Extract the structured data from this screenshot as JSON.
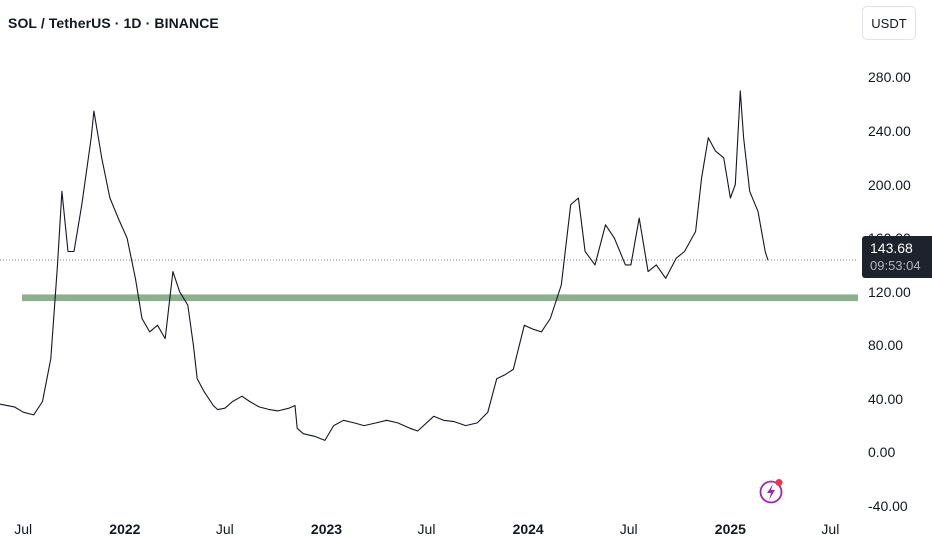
{
  "header": {
    "title": "SOL / TetherUS · 1D · BINANCE",
    "currency_label": "USDT"
  },
  "price_badge": {
    "price": "143.68",
    "countdown": "09:53:04"
  },
  "colors": {
    "line": "#131722",
    "support_band": "#8db08f",
    "badge_bg": "#1e222d",
    "accent": "#9c27b0",
    "notification": "#f23645"
  },
  "icons": {
    "bottom_right": "lightning-bolt-icon"
  },
  "chart_data": {
    "type": "line",
    "title": "SOL / TetherUS · 1D · BINANCE",
    "ylim": [
      -46,
      305
    ],
    "y_ticks": [
      "280.00",
      "240.00",
      "200.00",
      "160.00",
      "120.00",
      "80.00",
      "40.00",
      "0.00",
      "-40.00"
    ],
    "x_ticks": [
      {
        "label": "Jul",
        "date": "2021-07-01",
        "bold": false
      },
      {
        "label": "2022",
        "date": "2022-01-01",
        "bold": true
      },
      {
        "label": "Jul",
        "date": "2022-07-01",
        "bold": false
      },
      {
        "label": "2023",
        "date": "2023-01-01",
        "bold": true
      },
      {
        "label": "Jul",
        "date": "2023-07-01",
        "bold": false
      },
      {
        "label": "2024",
        "date": "2024-01-01",
        "bold": true
      },
      {
        "label": "Jul",
        "date": "2024-07-01",
        "bold": false
      },
      {
        "label": "2025",
        "date": "2025-01-01",
        "bold": true
      },
      {
        "label": "Jul",
        "date": "2025-07-01",
        "bold": false
      }
    ],
    "x_range": [
      "2021-05-20",
      "2025-08-20"
    ],
    "current_price": 143.68,
    "support_zone": [
      113,
      118
    ],
    "series": [
      {
        "x": [
          "2021-05-20",
          "2021-06-15",
          "2021-07-01",
          "2021-07-20",
          "2021-08-05",
          "2021-08-20",
          "2021-09-01",
          "2021-09-09",
          "2021-09-20",
          "2021-10-01",
          "2021-10-15",
          "2021-11-01",
          "2021-11-06",
          "2021-11-20",
          "2021-12-05",
          "2021-12-20",
          "2022-01-05",
          "2022-01-20",
          "2022-02-01",
          "2022-02-15",
          "2022-03-01",
          "2022-03-15",
          "2022-03-29",
          "2022-04-10",
          "2022-04-25",
          "2022-05-05",
          "2022-05-12",
          "2022-05-25",
          "2022-06-10",
          "2022-06-18",
          "2022-07-01",
          "2022-07-15",
          "2022-08-01",
          "2022-08-15",
          "2022-09-01",
          "2022-09-20",
          "2022-10-05",
          "2022-10-25",
          "2022-11-05",
          "2022-11-09",
          "2022-11-20",
          "2022-12-10",
          "2022-12-29",
          "2023-01-14",
          "2023-02-01",
          "2023-02-20",
          "2023-03-10",
          "2023-04-01",
          "2023-04-20",
          "2023-05-10",
          "2023-06-01",
          "2023-06-15",
          "2023-07-14",
          "2023-08-01",
          "2023-08-20",
          "2023-09-10",
          "2023-10-01",
          "2023-10-20",
          "2023-11-05",
          "2023-11-20",
          "2023-12-05",
          "2023-12-25",
          "2024-01-10",
          "2024-01-25",
          "2024-02-10",
          "2024-03-01",
          "2024-03-18",
          "2024-04-01",
          "2024-04-13",
          "2024-05-01",
          "2024-05-20",
          "2024-06-05",
          "2024-06-25",
          "2024-07-05",
          "2024-07-20",
          "2024-08-05",
          "2024-08-20",
          "2024-09-06",
          "2024-09-25",
          "2024-10-10",
          "2024-10-30",
          "2024-11-10",
          "2024-11-22",
          "2024-12-05",
          "2024-12-20",
          "2025-01-01",
          "2025-01-10",
          "2025-01-19",
          "2025-01-25",
          "2025-02-05",
          "2025-02-20",
          "2025-03-05",
          "2025-03-10"
        ],
        "y": [
          36,
          34,
          30,
          28,
          38,
          70,
          140,
          195,
          150,
          150,
          185,
          235,
          255,
          220,
          190,
          175,
          160,
          130,
          100,
          90,
          95,
          85,
          135,
          120,
          110,
          80,
          55,
          45,
          35,
          32,
          33,
          38,
          42,
          38,
          34,
          32,
          31,
          33,
          35,
          18,
          14,
          12,
          9,
          20,
          24,
          22,
          20,
          22,
          24,
          22,
          18,
          16,
          27,
          24,
          23,
          20,
          22,
          30,
          55,
          58,
          62,
          95,
          92,
          90,
          100,
          125,
          185,
          190,
          150,
          140,
          170,
          160,
          140,
          140,
          175,
          135,
          140,
          130,
          145,
          150,
          165,
          205,
          235,
          225,
          220,
          190,
          200,
          270,
          235,
          195,
          180,
          150,
          143.68
        ]
      }
    ]
  }
}
